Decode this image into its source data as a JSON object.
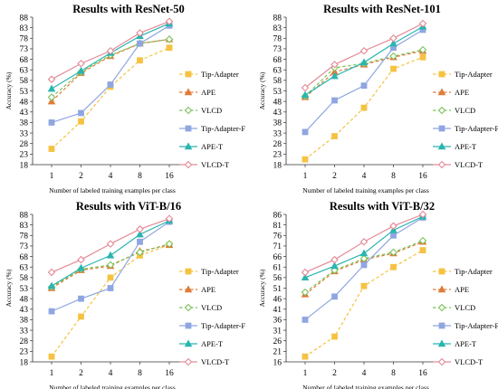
{
  "chart_data": [
    {
      "type": "line",
      "title": "Results with ResNet-50",
      "xlabel": "Number of labeled training examples per class",
      "ylabel": "Accuracy (%)",
      "categories": [
        "1",
        "2",
        "4",
        "8",
        "16"
      ],
      "ylim": [
        18,
        88
      ],
      "yticks": [
        18,
        23,
        28,
        33,
        38,
        43,
        48,
        53,
        58,
        63,
        68,
        73,
        78,
        83,
        88
      ],
      "legend_position": "right",
      "series": [
        {
          "name": "Tip-Adapter",
          "color": "#f5c242",
          "dash": "dashed",
          "marker": "square",
          "values": [
            25.5,
            38.5,
            55,
            67.5,
            73.5
          ]
        },
        {
          "name": "APE",
          "color": "#e07b39",
          "dash": "dashed",
          "marker": "triangle",
          "values": [
            48,
            61.5,
            69.5,
            75.5,
            77.5
          ]
        },
        {
          "name": "VLCD",
          "color": "#7cc35b",
          "dash": "dashed",
          "marker": "diamond-open",
          "values": [
            50,
            62,
            70,
            75.5,
            77.5
          ]
        },
        {
          "name": "Tip-Adapter-F",
          "color": "#8fa6e0",
          "dash": "solid",
          "marker": "square",
          "values": [
            38,
            42.5,
            56,
            75.5,
            84
          ]
        },
        {
          "name": "APE-T",
          "color": "#2bb5b0",
          "dash": "solid",
          "marker": "triangle",
          "values": [
            54,
            62.5,
            71,
            79,
            85
          ]
        },
        {
          "name": "VLCD-T",
          "color": "#e48a96",
          "dash": "solid",
          "marker": "diamond-open",
          "values": [
            58.5,
            66,
            72,
            80.5,
            86
          ]
        }
      ]
    },
    {
      "type": "line",
      "title": "Results with ResNet-101",
      "xlabel": "Number of labeled training examples per class",
      "ylabel": "Accuracy (%)",
      "categories": [
        "1",
        "2",
        "4",
        "8",
        "16"
      ],
      "ylim": [
        18,
        88
      ],
      "yticks": [
        18,
        23,
        28,
        33,
        38,
        43,
        48,
        53,
        58,
        63,
        68,
        73,
        78,
        83,
        88
      ],
      "legend_position": "right",
      "series": [
        {
          "name": "Tip-Adapter",
          "color": "#f5c242",
          "dash": "dashed",
          "marker": "square",
          "values": [
            20.5,
            31.5,
            45,
            63.5,
            69
          ]
        },
        {
          "name": "APE",
          "color": "#e07b39",
          "dash": "dashed",
          "marker": "triangle",
          "values": [
            50,
            62,
            65.5,
            69,
            72
          ]
        },
        {
          "name": "VLCD",
          "color": "#7cc35b",
          "dash": "dashed",
          "marker": "diamond-open",
          "values": [
            50.5,
            64,
            66,
            69.5,
            72.5
          ]
        },
        {
          "name": "Tip-Adapter-F",
          "color": "#8fa6e0",
          "dash": "solid",
          "marker": "square",
          "values": [
            33.5,
            48.5,
            55.5,
            73.5,
            82
          ]
        },
        {
          "name": "APE-T",
          "color": "#2bb5b0",
          "dash": "solid",
          "marker": "triangle",
          "values": [
            51,
            60,
            66.5,
            75.5,
            83.5
          ]
        },
        {
          "name": "VLCD-T",
          "color": "#e48a96",
          "dash": "solid",
          "marker": "diamond-open",
          "values": [
            54.5,
            65.5,
            72,
            78,
            85
          ]
        }
      ]
    },
    {
      "type": "line",
      "title": "Results with ViT-B/16",
      "xlabel": "Number of labeled training examples per class",
      "ylabel": "Accuracy (%)",
      "categories": [
        "1",
        "2",
        "4",
        "8",
        "16"
      ],
      "ylim": [
        18,
        88
      ],
      "yticks": [
        18,
        23,
        28,
        33,
        38,
        43,
        48,
        53,
        58,
        63,
        68,
        73,
        78,
        83,
        88
      ],
      "legend_position": "right",
      "series": [
        {
          "name": "Tip-Adapter",
          "color": "#f5c242",
          "dash": "dashed",
          "marker": "square",
          "values": [
            20.5,
            39.5,
            58,
            68.5,
            73.5
          ]
        },
        {
          "name": "APE",
          "color": "#e07b39",
          "dash": "dashed",
          "marker": "triangle",
          "values": [
            53,
            61.5,
            63.5,
            70.5,
            73.5
          ]
        },
        {
          "name": "VLCD",
          "color": "#7cc35b",
          "dash": "dashed",
          "marker": "diamond-open",
          "values": [
            53.5,
            62,
            64,
            70,
            74
          ]
        },
        {
          "name": "Tip-Adapter-F",
          "color": "#8fa6e0",
          "dash": "solid",
          "marker": "square",
          "values": [
            42,
            48,
            53,
            75,
            84.5
          ]
        },
        {
          "name": "APE-T",
          "color": "#2bb5b0",
          "dash": "solid",
          "marker": "triangle",
          "values": [
            54,
            62.5,
            68.5,
            78.5,
            85
          ]
        },
        {
          "name": "VLCD-T",
          "color": "#e48a96",
          "dash": "solid",
          "marker": "diamond-open",
          "values": [
            60.5,
            66.5,
            74,
            81,
            86
          ]
        }
      ]
    },
    {
      "type": "line",
      "title": "Results with ViT-B/32",
      "xlabel": "Number of labeled training examples per class",
      "ylabel": "Accuracy (%)",
      "categories": [
        "1",
        "2",
        "4",
        "8",
        "16"
      ],
      "ylim": [
        16,
        86
      ],
      "yticks": [
        16,
        21,
        26,
        31,
        36,
        41,
        46,
        51,
        56,
        61,
        66,
        71,
        76,
        81,
        86
      ],
      "legend_position": "right",
      "series": [
        {
          "name": "Tip-Adapter",
          "color": "#f5c242",
          "dash": "dashed",
          "marker": "square",
          "values": [
            18.5,
            28,
            52,
            61,
            69
          ]
        },
        {
          "name": "APE",
          "color": "#e07b39",
          "dash": "dashed",
          "marker": "triangle",
          "values": [
            48,
            59,
            64.5,
            67.5,
            73
          ]
        },
        {
          "name": "VLCD",
          "color": "#7cc35b",
          "dash": "dashed",
          "marker": "diamond-open",
          "values": [
            49,
            59.5,
            65,
            68,
            73.5
          ]
        },
        {
          "name": "Tip-Adapter-F",
          "color": "#8fa6e0",
          "dash": "solid",
          "marker": "square",
          "values": [
            36,
            47,
            62,
            76,
            84.5
          ]
        },
        {
          "name": "APE-T",
          "color": "#2bb5b0",
          "dash": "solid",
          "marker": "triangle",
          "values": [
            56,
            61.5,
            67.5,
            78.5,
            85
          ]
        },
        {
          "name": "VLCD-T",
          "color": "#e48a96",
          "dash": "solid",
          "marker": "diamond-open",
          "values": [
            58.5,
            64.5,
            73,
            80.5,
            86
          ]
        }
      ]
    }
  ]
}
